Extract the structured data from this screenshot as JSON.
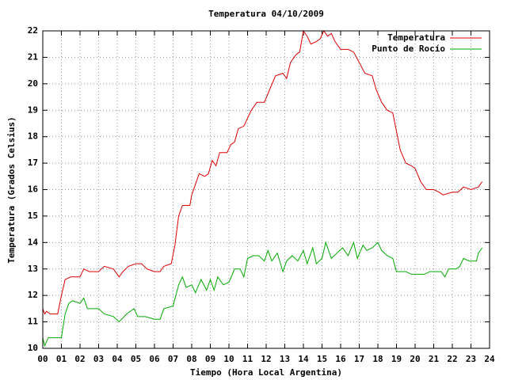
{
  "chart_data": {
    "type": "line",
    "title": "Temperatura 04/10/2009",
    "xlabel": "Tiempo (Hora Local Argentina)",
    "ylabel": "Temperatura (Grados Celsius)",
    "xlim": [
      0,
      24
    ],
    "ylim": [
      10,
      22
    ],
    "xticks": [
      {
        "value": 0,
        "label": "00"
      },
      {
        "value": 1,
        "label": "01"
      },
      {
        "value": 2,
        "label": "02"
      },
      {
        "value": 3,
        "label": "03"
      },
      {
        "value": 4,
        "label": "04"
      },
      {
        "value": 5,
        "label": "05"
      },
      {
        "value": 6,
        "label": "06"
      },
      {
        "value": 7,
        "label": "07"
      },
      {
        "value": 8,
        "label": "08"
      },
      {
        "value": 9,
        "label": "09"
      },
      10,
      11,
      12,
      13,
      14,
      15,
      16,
      17,
      18,
      19,
      20,
      21,
      22,
      23,
      24
    ],
    "yticks": [
      10,
      11,
      12,
      13,
      14,
      15,
      16,
      17,
      18,
      19,
      20,
      21,
      22
    ],
    "grid": true,
    "legend": "top right",
    "series": [
      {
        "name": "Temperatura",
        "color": "#dd0000",
        "x": [
          0.0,
          0.1,
          0.2,
          0.4,
          0.8,
          1.0,
          1.2,
          1.5,
          2.0,
          2.2,
          2.5,
          3.0,
          3.3,
          3.8,
          4.1,
          4.3,
          4.6,
          5.0,
          5.3,
          5.6,
          6.0,
          6.3,
          6.5,
          6.9,
          7.1,
          7.3,
          7.5,
          7.9,
          8.0,
          8.2,
          8.4,
          8.7,
          8.9,
          9.1,
          9.3,
          9.5,
          9.9,
          10.1,
          10.3,
          10.5,
          10.8,
          11.0,
          11.2,
          11.5,
          11.9,
          12.2,
          12.5,
          12.9,
          13.1,
          13.3,
          13.6,
          13.8,
          14.0,
          14.2,
          14.4,
          14.7,
          14.9,
          15.1,
          15.3,
          15.5,
          15.7,
          16.0,
          16.4,
          16.7,
          17.0,
          17.3,
          17.7,
          17.9,
          18.2,
          18.5,
          18.8,
          19.0,
          19.2,
          19.5,
          19.8,
          20.0,
          20.3,
          20.6,
          21.0,
          21.3,
          21.5,
          22.0,
          22.3,
          22.6,
          23.0,
          23.4,
          23.6
        ],
        "values": [
          11.5,
          11.3,
          11.4,
          11.3,
          11.3,
          12.0,
          12.6,
          12.7,
          12.7,
          13.0,
          12.9,
          12.9,
          13.1,
          13.0,
          12.7,
          12.9,
          13.1,
          13.2,
          13.2,
          13.0,
          12.9,
          12.9,
          13.1,
          13.2,
          13.9,
          15.0,
          15.4,
          15.4,
          15.8,
          16.2,
          16.6,
          16.5,
          16.6,
          17.1,
          16.9,
          17.4,
          17.4,
          17.7,
          17.8,
          18.3,
          18.4,
          18.7,
          19.0,
          19.3,
          19.3,
          19.8,
          20.3,
          20.4,
          20.2,
          20.8,
          21.1,
          21.2,
          22.0,
          21.8,
          21.5,
          21.6,
          21.7,
          22.0,
          21.8,
          21.9,
          21.6,
          21.3,
          21.3,
          21.2,
          20.8,
          20.4,
          20.3,
          19.8,
          19.3,
          19.0,
          18.9,
          18.2,
          17.5,
          17.0,
          16.9,
          16.8,
          16.3,
          16.0,
          16.0,
          15.9,
          15.8,
          15.9,
          15.9,
          16.1,
          16.0,
          16.1,
          16.3
        ]
      },
      {
        "name": "Punto de Rocío",
        "color": "#00aa00",
        "x": [
          0.0,
          0.1,
          0.3,
          1.0,
          1.2,
          1.4,
          1.6,
          2.0,
          2.2,
          2.4,
          3.0,
          3.3,
          3.8,
          4.1,
          4.5,
          4.9,
          5.1,
          5.5,
          6.0,
          6.3,
          6.5,
          7.0,
          7.3,
          7.5,
          7.7,
          8.0,
          8.2,
          8.5,
          8.8,
          9.0,
          9.2,
          9.4,
          9.7,
          10.0,
          10.3,
          10.6,
          10.8,
          11.0,
          11.3,
          11.6,
          11.9,
          12.1,
          12.3,
          12.6,
          12.9,
          13.1,
          13.4,
          13.7,
          14.0,
          14.2,
          14.5,
          14.7,
          15.0,
          15.2,
          15.5,
          15.8,
          16.1,
          16.4,
          16.7,
          16.9,
          17.2,
          17.4,
          17.7,
          18.0,
          18.2,
          18.5,
          18.8,
          19.0,
          19.5,
          19.8,
          20.0,
          20.5,
          20.8,
          21.0,
          21.4,
          21.6,
          21.8,
          22.2,
          22.4,
          22.6,
          22.9,
          23.3,
          23.4,
          23.6
        ],
        "values": [
          10.4,
          10.1,
          10.4,
          10.4,
          11.3,
          11.7,
          11.8,
          11.7,
          11.9,
          11.5,
          11.5,
          11.3,
          11.2,
          11.0,
          11.3,
          11.5,
          11.2,
          11.2,
          11.1,
          11.1,
          11.5,
          11.6,
          12.4,
          12.7,
          12.3,
          12.4,
          12.1,
          12.6,
          12.2,
          12.6,
          12.2,
          12.7,
          12.4,
          12.5,
          13.0,
          13.0,
          12.7,
          13.4,
          13.5,
          13.5,
          13.3,
          13.7,
          13.3,
          13.6,
          12.9,
          13.3,
          13.5,
          13.3,
          13.7,
          13.2,
          13.8,
          13.2,
          13.4,
          14.0,
          13.4,
          13.6,
          13.8,
          13.5,
          14.0,
          13.4,
          13.9,
          13.7,
          13.8,
          14.0,
          13.7,
          13.5,
          13.4,
          12.9,
          12.9,
          12.8,
          12.8,
          12.8,
          12.9,
          12.9,
          12.9,
          12.7,
          13.0,
          13.0,
          13.1,
          13.4,
          13.3,
          13.3,
          13.6,
          13.8
        ]
      }
    ]
  }
}
